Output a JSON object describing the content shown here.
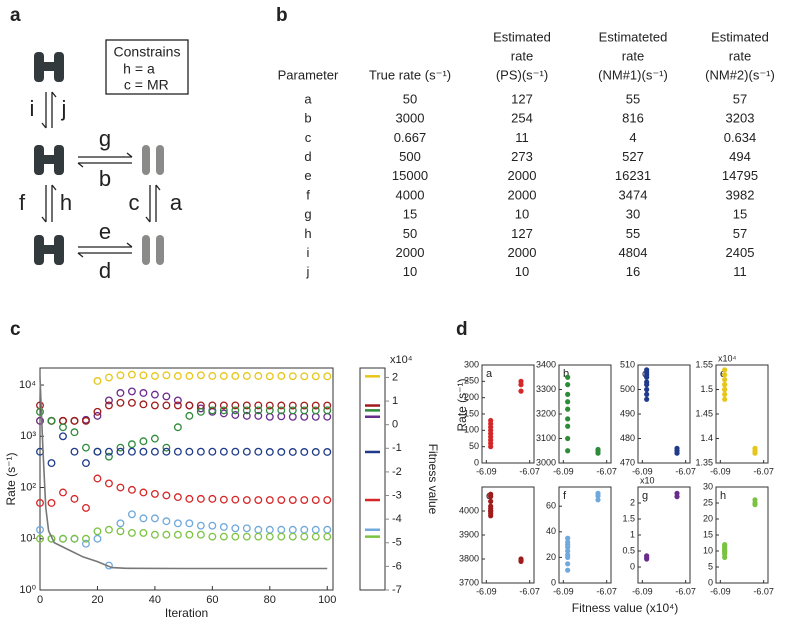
{
  "panel_labels": [
    "a",
    "b",
    "c",
    "d"
  ],
  "diagram": {
    "constraint_title": "Constrains",
    "constraints": [
      {
        "left": "h =",
        "right": "a",
        "color": "#d62728"
      },
      {
        "left": "c =",
        "right": "MR",
        "color": "#222222"
      }
    ],
    "rates": [
      {
        "label": "i",
        "color": "#6a2c8c"
      },
      {
        "label": "j",
        "color": "#7cc242"
      },
      {
        "label": "g",
        "color": "#6fa8dc"
      },
      {
        "label": "b",
        "color": "#2e8b3a"
      },
      {
        "label": "f",
        "color": "#a01c1c"
      },
      {
        "label": "h",
        "color": "#222222"
      },
      {
        "label": "c",
        "color": "#222222"
      },
      {
        "label": "a",
        "color": "#d62728"
      },
      {
        "label": "e",
        "color": "#e6c619"
      },
      {
        "label": "d",
        "color": "#1f3a8a"
      }
    ]
  },
  "table": {
    "header": [
      [
        "Parameter"
      ],
      [
        "True rate (s⁻¹)"
      ],
      [
        "Estimated",
        "rate",
        "(PS)(s⁻¹)"
      ],
      [
        "Estimateted",
        "rate",
        "(NM#1)(s⁻¹)"
      ],
      [
        "Estimated",
        "rate",
        "(NM#2)(s⁻¹)"
      ]
    ],
    "row_colors": [
      "#d62728",
      "#2e8b3a",
      "#222222",
      "#1f3a8a",
      "#e6c619",
      "#a01c1c",
      "#6fa8dc",
      "#222222",
      "#6a2c8c",
      "#7cc242"
    ],
    "rows": [
      [
        "a",
        50,
        127,
        55,
        57
      ],
      [
        "b",
        3000,
        254,
        816,
        3203
      ],
      [
        "c",
        0.667,
        11,
        4,
        0.634
      ],
      [
        "d",
        500,
        273,
        527,
        494
      ],
      [
        "e",
        15000,
        2000,
        16231,
        14795
      ],
      [
        "f",
        4000,
        2000,
        3474,
        3982
      ],
      [
        "g",
        15,
        10,
        30,
        15
      ],
      [
        "h",
        50,
        127,
        55,
        57
      ],
      [
        "i",
        2000,
        2000,
        4804,
        2405
      ],
      [
        "j",
        10,
        10,
        16,
        11
      ]
    ]
  },
  "panel_d": {
    "xlabel": "Fitness value (x10⁴)",
    "ylabel": "Rate (s⁻¹)"
  },
  "chart_data": [
    {
      "type": "scatter",
      "xlabel": "Iteration",
      "ylabel": "Rate (s⁻¹)",
      "y2label": "Fitness value",
      "y2_annotation": "x10⁴",
      "yscale": "log",
      "xlim": [
        0,
        102
      ],
      "xticks": [
        0,
        20,
        40,
        60,
        80,
        100
      ],
      "ylim": [
        1,
        21500
      ],
      "yticks": [
        {
          "value": 1,
          "label": "10⁰"
        },
        {
          "value": 10,
          "label": "10¹"
        },
        {
          "value": 100,
          "label": "10²"
        },
        {
          "value": 1000,
          "label": "10³"
        },
        {
          "value": 10000,
          "label": "10⁴"
        }
      ],
      "y2lim": [
        -7,
        2.4
      ],
      "y2ticks": [
        -7,
        -6,
        -5,
        -4,
        -3,
        -2,
        -1,
        0,
        1,
        2
      ],
      "x": [
        0,
        4,
        8,
        12,
        16,
        20,
        24,
        28,
        32,
        36,
        40,
        44,
        48,
        52,
        56,
        60,
        64,
        68,
        72,
        76,
        80,
        84,
        88,
        92,
        96,
        100
      ],
      "series": [
        {
          "color": "#e6c619",
          "style": "markers",
          "values": [
            2000,
            2000,
            2000,
            2000,
            2000,
            12000,
            14000,
            15500,
            16000,
            15500,
            15000,
            15500,
            15000,
            15000,
            15500,
            15000,
            15000,
            15000,
            15000,
            15000,
            14800,
            15000,
            14900,
            14800,
            14800,
            14795
          ]
        },
        {
          "color": "#6a2c8c",
          "style": "markers",
          "values": [
            2000,
            2000,
            2000,
            2000,
            2100,
            2500,
            5000,
            7000,
            7500,
            7000,
            6500,
            6000,
            5000,
            4000,
            3500,
            3000,
            2800,
            2600,
            2500,
            2500,
            2400,
            2450,
            2400,
            2400,
            2400,
            2405
          ]
        },
        {
          "color": "#a01c1c",
          "style": "markers",
          "values": [
            4000,
            2000,
            2000,
            2000,
            2000,
            3000,
            4000,
            4500,
            4500,
            4200,
            4000,
            4000,
            4000,
            4000,
            4000,
            4000,
            4000,
            4000,
            4000,
            4000,
            3980,
            3990,
            3980,
            3980,
            3980,
            3982
          ]
        },
        {
          "color": "#2e8b3a",
          "style": "markers",
          "values": [
            3000,
            2000,
            1500,
            1200,
            600,
            500,
            400,
            600,
            700,
            800,
            900,
            600,
            1500,
            2500,
            3000,
            3200,
            3200,
            3200,
            3200,
            3200,
            3200,
            3200,
            3200,
            3200,
            3200,
            3203
          ]
        },
        {
          "color": "#1f3a8a",
          "style": "markers",
          "values": [
            500,
            300,
            1000,
            500,
            300,
            500,
            500,
            500,
            500,
            500,
            500,
            500,
            500,
            500,
            500,
            500,
            500,
            500,
            500,
            500,
            494,
            494,
            494,
            494,
            494,
            494
          ]
        },
        {
          "color": "#d62728",
          "style": "markers",
          "values": [
            50,
            50,
            80,
            60,
            40,
            150,
            120,
            100,
            90,
            80,
            75,
            70,
            65,
            60,
            60,
            60,
            58,
            58,
            57,
            57,
            57,
            57,
            57,
            57,
            57,
            57
          ]
        },
        {
          "color": "#6fa8dc",
          "style": "markers",
          "values": [
            15,
            10,
            10,
            10,
            8,
            10,
            3,
            20,
            30,
            25,
            25,
            22,
            20,
            20,
            18,
            18,
            17,
            16,
            16,
            15,
            15,
            15,
            15,
            15,
            15,
            15
          ]
        },
        {
          "color": "#7cc242",
          "style": "markers",
          "values": [
            10,
            10,
            10,
            10,
            10,
            14,
            15,
            14,
            13,
            13,
            12,
            12,
            12,
            12,
            12,
            11,
            11,
            11,
            11,
            11,
            11,
            11,
            11,
            11,
            11,
            11
          ]
        },
        {
          "color": "#777777",
          "style": "line",
          "axis": "y2",
          "x": [
            0,
            1,
            2,
            3,
            5,
            10,
            15,
            20,
            25,
            30,
            50,
            100
          ],
          "values": [
            2,
            -1,
            -3.5,
            -4.5,
            -5,
            -5.3,
            -5.6,
            -5.8,
            -6.05,
            -6.08,
            -6.09,
            -6.09
          ]
        }
      ]
    },
    {
      "type": "scatter",
      "label": "a",
      "color": "#d62728",
      "xlim": [
        -6.092,
        -6.068
      ],
      "xticks": [
        -6.09,
        -6.07
      ],
      "ylim": [
        0,
        300
      ],
      "yticks": [
        0,
        50,
        100,
        150,
        200,
        250,
        300
      ],
      "x": [
        -6.088,
        -6.088,
        -6.088,
        -6.088,
        -6.088,
        -6.088,
        -6.088,
        -6.088,
        -6.088,
        -6.074,
        -6.074,
        -6.074
      ],
      "values": [
        50,
        60,
        70,
        80,
        90,
        100,
        110,
        120,
        130,
        220,
        240,
        250
      ]
    },
    {
      "type": "scatter",
      "label": "b",
      "color": "#2e8b3a",
      "xlim": [
        -6.092,
        -6.068
      ],
      "xticks": [
        -6.09,
        -6.07
      ],
      "ylim": [
        3000,
        3400
      ],
      "yticks": [
        3000,
        3100,
        3200,
        3300,
        3400
      ],
      "x": [
        -6.088,
        -6.088,
        -6.088,
        -6.088,
        -6.088,
        -6.088,
        -6.088,
        -6.088,
        -6.088,
        -6.074,
        -6.074,
        -6.074
      ],
      "values": [
        3050,
        3100,
        3150,
        3180,
        3220,
        3250,
        3280,
        3320,
        3350,
        3040,
        3050,
        3055
      ]
    },
    {
      "type": "scatter",
      "label": "c",
      "color": "#1f3a8a",
      "xlim": [
        -6.092,
        -6.068
      ],
      "xticks": [
        -6.09,
        -6.07
      ],
      "ylim": [
        470,
        510
      ],
      "yticks": [
        470,
        480,
        490,
        500,
        510
      ],
      "x": [
        -6.088,
        -6.088,
        -6.088,
        -6.088,
        -6.088,
        -6.088,
        -6.088,
        -6.088,
        -6.088,
        -6.074,
        -6.074,
        -6.074
      ],
      "values": [
        496,
        498,
        500,
        502,
        503,
        505,
        506,
        507,
        508,
        476,
        475,
        474
      ]
    },
    {
      "type": "scatter",
      "label": "e",
      "annotation": "x10⁴",
      "color": "#e6c619",
      "xlim": [
        -6.092,
        -6.068
      ],
      "xticks": [
        -6.09,
        -6.07
      ],
      "ylim": [
        1.35,
        1.55
      ],
      "yticks": [
        1.35,
        1.4,
        1.45,
        1.5,
        1.55
      ],
      "x": [
        -6.088,
        -6.088,
        -6.088,
        -6.088,
        -6.088,
        -6.088,
        -6.088,
        -6.088,
        -6.088,
        -6.074,
        -6.074,
        -6.074
      ],
      "values": [
        1.48,
        1.49,
        1.5,
        1.51,
        1.52,
        1.53,
        1.54,
        1.5,
        1.51,
        1.38,
        1.37,
        1.375
      ]
    },
    {
      "type": "scatter",
      "label": "e",
      "color": "#a01c1c",
      "xlim": [
        -6.092,
        -6.068
      ],
      "xticks": [
        -6.09,
        -6.07
      ],
      "ylim": [
        3700,
        4100
      ],
      "yticks": [
        3700,
        3800,
        3900,
        4000
      ],
      "x": [
        -6.088,
        -6.088,
        -6.088,
        -6.088,
        -6.088,
        -6.088,
        -6.088,
        -6.088,
        -6.088,
        -6.074,
        -6.074,
        -6.074
      ],
      "values": [
        3980,
        3990,
        4000,
        4010,
        4020,
        4040,
        4060,
        4070,
        4000,
        3790,
        3800,
        3795
      ]
    },
    {
      "type": "scatter",
      "label": "f",
      "color": "#6fa8dc",
      "xlim": [
        -6.092,
        -6.068
      ],
      "xticks": [
        -6.09,
        -6.07
      ],
      "ylim": [
        0,
        75
      ],
      "yticks": [
        0,
        20,
        40,
        60
      ],
      "x": [
        -6.088,
        -6.088,
        -6.088,
        -6.088,
        -6.088,
        -6.088,
        -6.088,
        -6.088,
        -6.088,
        -6.074,
        -6.074,
        -6.074
      ],
      "values": [
        10,
        15,
        20,
        22,
        25,
        28,
        30,
        32,
        35,
        65,
        68,
        70
      ]
    },
    {
      "type": "scatter",
      "label": "g",
      "annotation": "x10",
      "color": "#6a2c8c",
      "xlim": [
        -6.092,
        -6.068
      ],
      "xticks": [
        -6.09,
        -6.07
      ],
      "ylim": [
        -0.5,
        2.5
      ],
      "yticks": [
        0,
        0.5,
        1,
        1.5,
        2
      ],
      "x": [
        -6.088,
        -6.088,
        -6.088,
        -6.074,
        -6.074
      ],
      "values": [
        0.25,
        0.3,
        0.35,
        2.2,
        2.3
      ]
    },
    {
      "type": "scatter",
      "label": "h",
      "color": "#7cc242",
      "xlim": [
        -6.092,
        -6.068
      ],
      "xticks": [
        -6.09,
        -6.07
      ],
      "ylim": [
        0,
        30
      ],
      "yticks": [
        0,
        5,
        10,
        15,
        20,
        25,
        30
      ],
      "x": [
        -6.088,
        -6.088,
        -6.088,
        -6.088,
        -6.088,
        -6.088,
        -6.088,
        -6.088,
        -6.088,
        -6.074,
        -6.074,
        -6.074
      ],
      "values": [
        8,
        9,
        10,
        10.5,
        11,
        11.5,
        12,
        10,
        9.5,
        25,
        26,
        24.5
      ]
    }
  ]
}
